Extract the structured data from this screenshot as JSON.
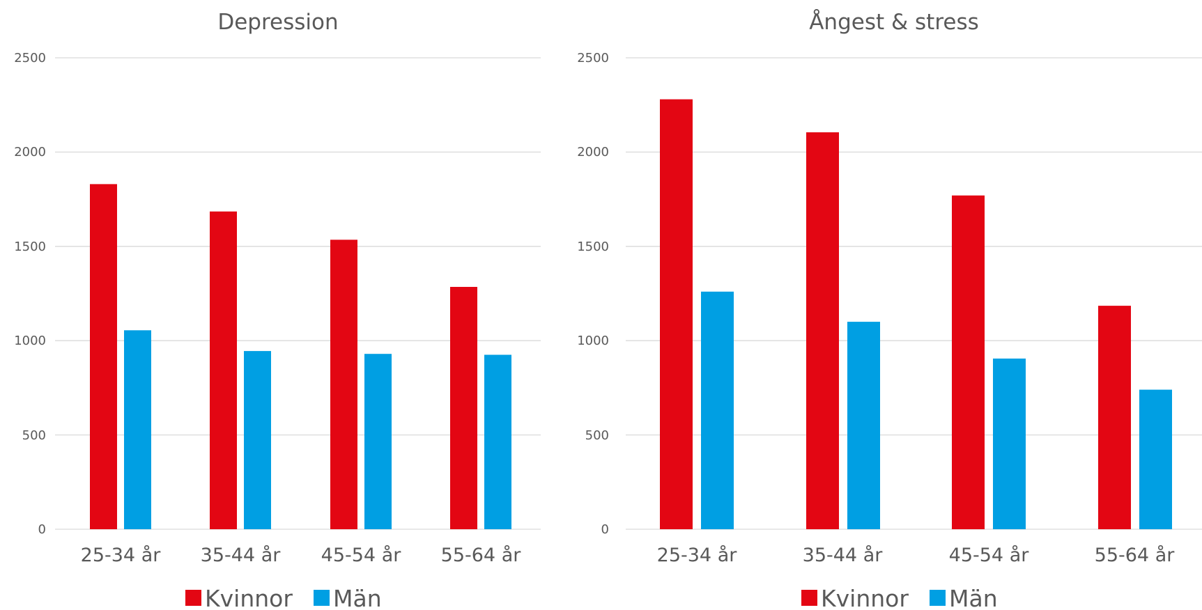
{
  "chart_data": [
    {
      "type": "bar",
      "title": "Depression",
      "categories": [
        "25-34 år",
        "35-44 år",
        "45-54 år",
        "55-64 år"
      ],
      "series": [
        {
          "name": "Kvinnor",
          "color": "#e30613",
          "values": [
            1830,
            1685,
            1535,
            1285
          ]
        },
        {
          "name": "Män",
          "color": "#009fe3",
          "values": [
            1055,
            945,
            930,
            925
          ]
        }
      ],
      "yticks": [
        "0",
        "500",
        "1000",
        "1500",
        "2000",
        "2500"
      ],
      "ylim": [
        0,
        2500
      ],
      "grid": true,
      "legend": "bottom"
    },
    {
      "type": "bar",
      "title": "Ångest & stress",
      "categories": [
        "25-34 år",
        "35-44 år",
        "45-54 år",
        "55-64 år"
      ],
      "series": [
        {
          "name": "Kvinnor",
          "color": "#e30613",
          "values": [
            2280,
            2105,
            1770,
            1185
          ]
        },
        {
          "name": "Män",
          "color": "#009fe3",
          "values": [
            1260,
            1100,
            905,
            740
          ]
        }
      ],
      "yticks": [
        "0",
        "500",
        "1000",
        "1500",
        "2000",
        "2500"
      ],
      "ylim": [
        0,
        2500
      ],
      "grid": true,
      "legend": "bottom"
    }
  ]
}
